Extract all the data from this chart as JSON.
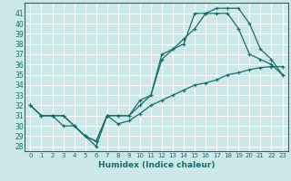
{
  "title": "",
  "xlabel": "Humidex (Indice chaleur)",
  "bg_color": "#cde8e8",
  "grid_color": "#ffffff",
  "line_color": "#1a6b6b",
  "xlim": [
    -0.5,
    23.5
  ],
  "ylim": [
    27.5,
    42.0
  ],
  "xticks": [
    0,
    1,
    2,
    3,
    4,
    5,
    6,
    7,
    8,
    9,
    10,
    11,
    12,
    13,
    14,
    15,
    16,
    17,
    18,
    19,
    20,
    21,
    22,
    23
  ],
  "yticks": [
    28,
    29,
    30,
    31,
    32,
    33,
    34,
    35,
    36,
    37,
    38,
    39,
    40,
    41
  ],
  "line1_x": [
    0,
    1,
    2,
    3,
    4,
    5,
    6,
    7,
    8,
    9,
    10,
    11,
    12,
    13,
    14,
    15,
    16,
    17,
    18,
    19,
    20,
    21,
    22,
    23
  ],
  "line1_y": [
    32,
    31,
    31,
    31,
    30,
    29,
    28,
    31,
    30.2,
    30.5,
    31.2,
    32,
    32.5,
    33,
    33.5,
    34,
    34.2,
    34.5,
    35,
    35.2,
    35.5,
    35.7,
    35.8,
    35.8
  ],
  "line2_x": [
    0,
    1,
    2,
    3,
    4,
    5,
    6,
    7,
    8,
    9,
    10,
    11,
    12,
    13,
    14,
    15,
    16,
    17,
    18,
    19,
    20,
    21,
    22,
    23
  ],
  "line2_y": [
    32,
    31,
    31,
    30,
    30,
    29,
    28.5,
    31,
    31,
    31,
    32.5,
    33,
    36.5,
    37.5,
    38,
    41,
    41,
    41,
    41,
    39.5,
    37,
    36.5,
    36,
    35
  ],
  "line3_x": [
    0,
    1,
    2,
    3,
    4,
    5,
    6,
    7,
    8,
    9,
    10,
    11,
    12,
    13,
    14,
    15,
    16,
    17,
    18,
    19,
    20,
    21,
    22,
    23
  ],
  "line3_y": [
    32,
    31,
    31,
    31,
    30,
    29,
    28.5,
    31,
    31,
    31,
    32,
    33,
    37,
    37.5,
    38.5,
    39.5,
    41,
    41.5,
    41.5,
    41.5,
    40,
    37.5,
    36.5,
    35
  ]
}
